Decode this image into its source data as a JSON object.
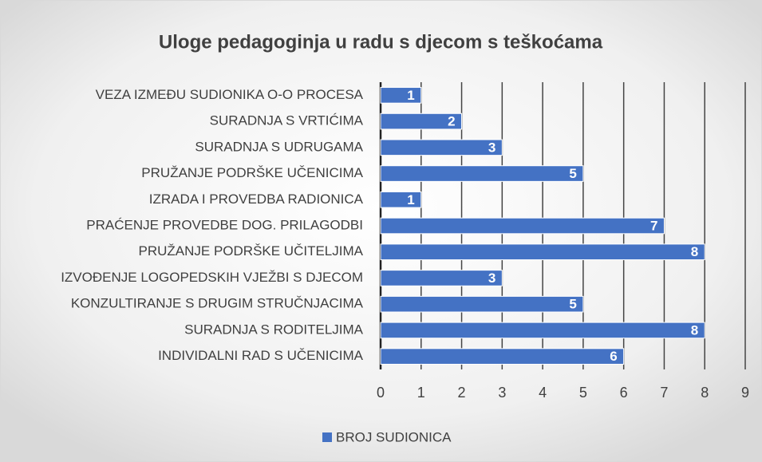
{
  "chart_data": {
    "type": "bar",
    "orientation": "horizontal",
    "title": "Uloge pedagoginja u radu s djecom s teškoćama",
    "categories": [
      "VEZA IZMEĐU SUDIONIKA O-O PROCESA",
      "SURADNJA S VRTIĆIMA",
      "SURADNJA S UDRUGAMA",
      "PRUŽANJE PODRŠKE UČENICIMA",
      "IZRADA I PROVEDBA RADIONICA",
      "PRAĆENJE PROVEDBE DOG. PRILAGODBI",
      "PRUŽANJE PODRŠKE UČITELJIMA",
      "IZVOĐENJE LOGOPEDSKIH VJEŽBI S DJECOM",
      "KONZULTIRANJE S DRUGIM STRUČNJACIMA",
      "SURADNJA S RODITELJIMA",
      "INDIVIDALNI RAD S UČENICIMA"
    ],
    "series": [
      {
        "name": "BROJ SUDIONICA",
        "color": "#4472c4",
        "values": [
          1,
          2,
          3,
          5,
          1,
          7,
          8,
          3,
          5,
          8,
          6
        ]
      }
    ],
    "xlim": [
      0,
      9
    ],
    "xticks": [
      0,
      1,
      2,
      3,
      4,
      5,
      6,
      7,
      8,
      9
    ],
    "grid": true,
    "legend": "bottom"
  }
}
